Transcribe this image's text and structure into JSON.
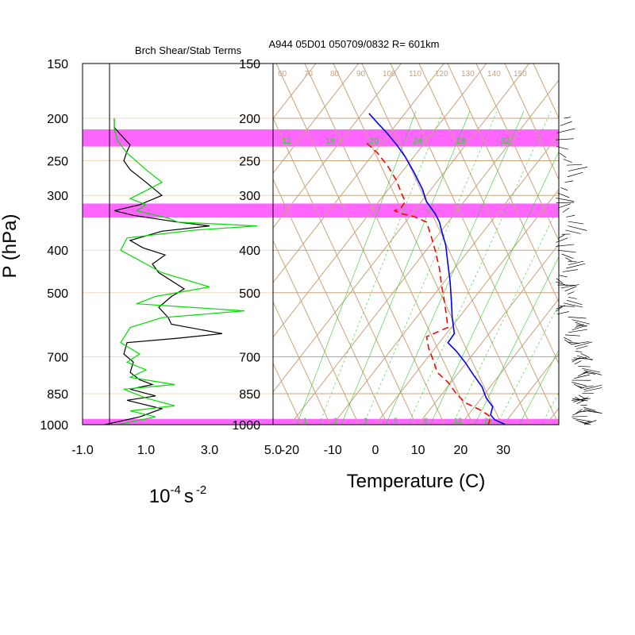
{
  "figure": {
    "left_title": "Brch Shear/Stab Terms",
    "right_title": "A944 05D01 050709/0832 R= 601km",
    "y_axis_label": "P (hPa)",
    "left_x_label_base": "10",
    "left_x_label_exp": "-4",
    "left_x_label_unit": "s",
    "left_x_label_unit_exp": "-2",
    "right_x_label": "Temperature (C)"
  },
  "colors": {
    "highlight": "#ff66ff",
    "skewt_lines": "#c8a27a",
    "mixing_ratio": "#33cc33",
    "temperature": "#0000ff",
    "dewpoint": "#ff0000",
    "shear_term": "#000000",
    "stability_term": "#00dd00"
  },
  "chart_data": [
    {
      "type": "line",
      "title": "Brch Shear/Stab Terms",
      "y_scale": "log-pressure",
      "ylim": [
        1000,
        150
      ],
      "y_ticks": [
        150,
        200,
        250,
        300,
        400,
        500,
        700,
        850,
        1000
      ],
      "y_tick_labels": [
        "150",
        "200",
        "250",
        "300",
        "400",
        "500",
        "700",
        "850",
        "1000"
      ],
      "xlim": [
        -1.0,
        5.0
      ],
      "x_ticks": [
        -1.0,
        1.0,
        3.0,
        5.0
      ],
      "x_tick_labels": [
        "-1.0",
        "1.0",
        "3.0",
        "5.0"
      ],
      "highlight_bands_hpa": [
        [
          212,
          232
        ],
        [
          313,
          337
        ],
        [
          970,
          1000
        ]
      ],
      "series": [
        {
          "color_key": "shear_term",
          "points": [
            [
              0.0,
              200
            ],
            [
              0.0,
              210
            ],
            [
              0.3,
              222
            ],
            [
              0.5,
              230
            ],
            [
              0.4,
              238
            ],
            [
              0.3,
              250
            ],
            [
              0.5,
              262
            ],
            [
              1.0,
              280
            ],
            [
              1.5,
              300
            ],
            [
              0.8,
              315
            ],
            [
              0.0,
              325
            ],
            [
              0.6,
              333
            ],
            [
              2.0,
              345
            ],
            [
              3.0,
              352
            ],
            [
              1.5,
              362
            ],
            [
              0.5,
              380
            ],
            [
              0.9,
              395
            ],
            [
              1.6,
              410
            ],
            [
              1.2,
              430
            ],
            [
              1.4,
              450
            ],
            [
              2.2,
              490
            ],
            [
              1.8,
              510
            ],
            [
              1.4,
              540
            ],
            [
              1.7,
              570
            ],
            [
              1.8,
              590
            ],
            [
              3.4,
              620
            ],
            [
              2.0,
              635
            ],
            [
              0.4,
              650
            ],
            [
              0.3,
              690
            ],
            [
              0.6,
              720
            ],
            [
              0.5,
              760
            ],
            [
              0.8,
              790
            ],
            [
              1.2,
              810
            ],
            [
              0.5,
              830
            ],
            [
              1.3,
              860
            ],
            [
              0.4,
              880
            ],
            [
              1.5,
              920
            ],
            [
              0.8,
              960
            ],
            [
              -0.3,
              1000
            ]
          ]
        },
        {
          "color_key": "stability_term",
          "points": [
            [
              0.0,
              200
            ],
            [
              0.0,
              212
            ],
            [
              0.1,
              225
            ],
            [
              0.4,
              240
            ],
            [
              1.0,
              262
            ],
            [
              1.5,
              280
            ],
            [
              0.9,
              295
            ],
            [
              0.5,
              305
            ],
            [
              1.0,
              315
            ],
            [
              0.7,
              325
            ],
            [
              1.7,
              338
            ],
            [
              2.0,
              345
            ],
            [
              4.5,
              352
            ],
            [
              2.5,
              360
            ],
            [
              0.4,
              375
            ],
            [
              0.2,
              400
            ],
            [
              1.0,
              430
            ],
            [
              1.5,
              450
            ],
            [
              3.0,
              485
            ],
            [
              1.3,
              510
            ],
            [
              0.7,
              530
            ],
            [
              4.1,
              550
            ],
            [
              1.5,
              570
            ],
            [
              0.5,
              600
            ],
            [
              0.2,
              650
            ],
            [
              0.8,
              690
            ],
            [
              0.4,
              720
            ],
            [
              1.0,
              750
            ],
            [
              0.5,
              780
            ],
            [
              1.9,
              810
            ],
            [
              0.3,
              830
            ],
            [
              1.0,
              870
            ],
            [
              1.9,
              905
            ],
            [
              0.5,
              930
            ],
            [
              1.3,
              960
            ],
            [
              0.1,
              1000
            ]
          ]
        }
      ]
    },
    {
      "type": "line",
      "title": "A944 05D01 050709/0832 R= 601km",
      "xlabel": "Temperature (C)",
      "y_scale": "log-pressure",
      "ylim": [
        1000,
        150
      ],
      "y_ticks": [
        150,
        200,
        250,
        300,
        400,
        500,
        700,
        850,
        1000
      ],
      "y_tick_labels": [
        "150",
        "200",
        "250",
        "300",
        "400",
        "500",
        "700",
        "850",
        "1000"
      ],
      "x_ticks": [
        -20,
        -10,
        0,
        10,
        20,
        30
      ],
      "x_tick_labels": [
        "-20",
        "-10",
        "0",
        "10",
        "20",
        "30"
      ],
      "xlim": [
        -24,
        43
      ],
      "highlight_bands_hpa": [
        [
          212,
          232
        ],
        [
          313,
          337
        ],
        [
          970,
          1000
        ]
      ],
      "isotherm_labels": [
        "60",
        "70",
        "80",
        "90",
        "100",
        "110",
        "120",
        "130",
        "140",
        "150"
      ],
      "mixing_ratio_top_labels": [
        "12",
        "16",
        "20",
        "24",
        "28",
        "32"
      ],
      "mixing_ratio_bottom_labels": [
        "1",
        "2",
        "3",
        "5",
        "8",
        "12",
        "20"
      ],
      "series": [
        {
          "name": "Temperature",
          "color_key": "temperature",
          "style": "solid",
          "points": [
            [
              -1.5,
              195
            ],
            [
              0.5,
              205
            ],
            [
              2.5,
              215
            ],
            [
              5.0,
              230
            ],
            [
              7.0,
              245
            ],
            [
              9.0,
              265
            ],
            [
              11.0,
              290
            ],
            [
              12.0,
              310
            ],
            [
              14.0,
              330
            ],
            [
              15.0,
              345
            ],
            [
              15.5,
              360
            ],
            [
              16.5,
              390
            ],
            [
              17.0,
              430
            ],
            [
              17.5,
              470
            ],
            [
              17.8,
              520
            ],
            [
              18.0,
              570
            ],
            [
              18.5,
              620
            ],
            [
              17.0,
              650
            ],
            [
              19.0,
              680
            ],
            [
              21.0,
              720
            ],
            [
              23.0,
              770
            ],
            [
              25.0,
              820
            ],
            [
              26.0,
              870
            ],
            [
              27.5,
              910
            ],
            [
              27.0,
              950
            ],
            [
              28.0,
              975
            ],
            [
              30.5,
              1000
            ]
          ]
        },
        {
          "name": "Dewpoint",
          "color_key": "dewpoint",
          "style": "dashed",
          "points": [
            [
              -2.0,
              228
            ],
            [
              0.5,
              240
            ],
            [
              3.0,
              258
            ],
            [
              5.0,
              278
            ],
            [
              6.0,
              295
            ],
            [
              7.0,
              310
            ],
            [
              6.0,
              320
            ],
            [
              4.5,
              325
            ],
            [
              6.0,
              330
            ],
            [
              9.0,
              335
            ],
            [
              12.0,
              345
            ],
            [
              13.0,
              370
            ],
            [
              14.0,
              400
            ],
            [
              15.0,
              440
            ],
            [
              15.5,
              480
            ],
            [
              16.0,
              510
            ],
            [
              16.5,
              550
            ],
            [
              17.0,
              600
            ],
            [
              12.0,
              630
            ],
            [
              12.5,
              670
            ],
            [
              13.5,
              710
            ],
            [
              14.5,
              760
            ],
            [
              17.0,
              800
            ],
            [
              19.0,
              850
            ],
            [
              21.0,
              890
            ],
            [
              25.0,
              930
            ],
            [
              27.0,
              960
            ],
            [
              26.5,
              1000
            ]
          ]
        }
      ]
    }
  ]
}
